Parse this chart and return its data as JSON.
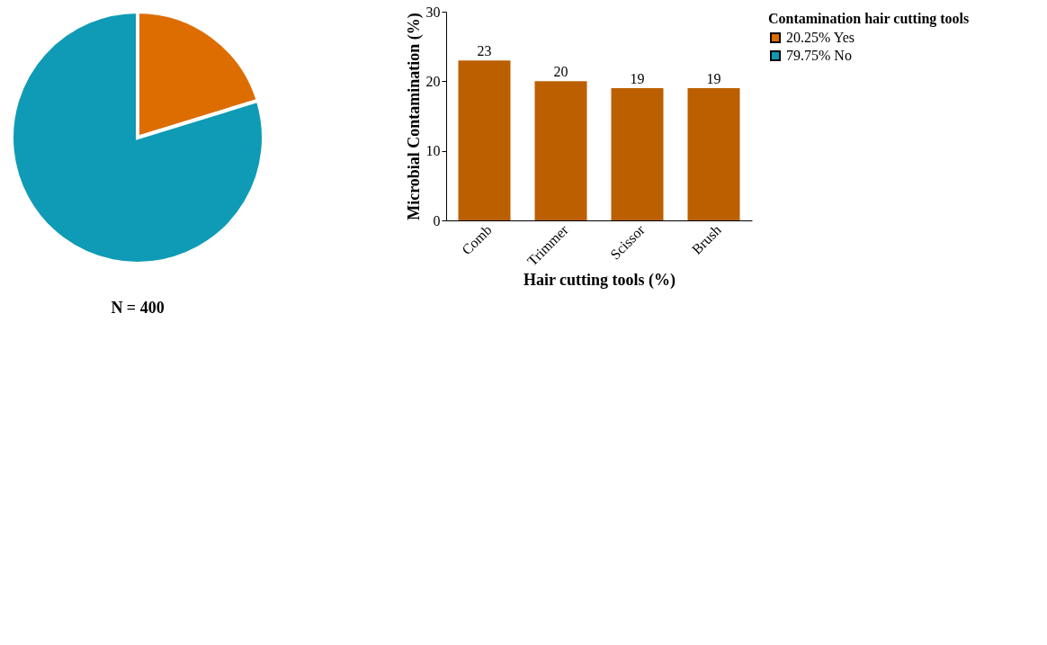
{
  "chart_data": [
    {
      "type": "pie",
      "legend_title": "Contamination hair cutting tools",
      "categories": [
        "Yes",
        "No"
      ],
      "values": [
        20.25,
        79.75
      ],
      "value_labels": [
        "20.25%",
        "79.75%"
      ],
      "colors": [
        "#dd6d00",
        "#0f9bb5"
      ],
      "legend": "right",
      "annotations": [
        "N = 400"
      ]
    },
    {
      "type": "bar",
      "categories": [
        "Comb",
        "Trimmer",
        "Scissor",
        "Brush"
      ],
      "values": [
        23,
        20,
        19,
        19
      ],
      "color": "#bb5f00",
      "ylim": [
        0,
        30
      ],
      "yticks": [
        0,
        10,
        20,
        30
      ],
      "data_labels": true,
      "xlabel": "Hair cutting tools (%)",
      "ylabel": "Microbial Contamination (%)",
      "grid": false
    }
  ]
}
